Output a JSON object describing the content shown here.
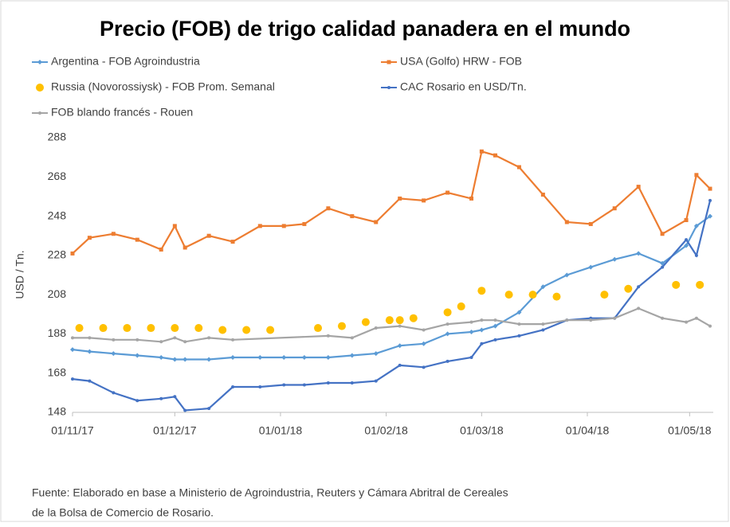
{
  "chart_data": {
    "type": "line",
    "title": "Precio (FOB) de trigo calidad panadera en el mundo",
    "ylabel": "USD / Tn.",
    "source": [
      "Fuente: Elaborado en base a Ministerio de Agroindustria, Reuters y Cámara Abritral de Cereales",
      "de la Bolsa de Comercio de Rosario."
    ],
    "xlim": [
      "01/11/17",
      "07/05/18"
    ],
    "xticks": [
      "01/11/17",
      "01/12/17",
      "01/01/18",
      "01/02/18",
      "01/03/18",
      "01/04/18",
      "01/05/18"
    ],
    "ylim": [
      148,
      288
    ],
    "yticks": [
      148,
      168,
      188,
      208,
      228,
      248,
      268,
      288
    ],
    "grid": false,
    "series": [
      {
        "name": "Argentina - FOB Agroindustria",
        "color": "#5b9bd5",
        "marker": "diamond",
        "x": [
          "01/11/17",
          "06/11/17",
          "13/11/17",
          "20/11/17",
          "27/11/17",
          "01/12/17",
          "04/12/17",
          "11/12/17",
          "18/12/17",
          "26/12/17",
          "02/01/18",
          "08/01/18",
          "15/01/18",
          "22/01/18",
          "29/01/18",
          "05/02/18",
          "12/02/18",
          "19/02/18",
          "26/02/18",
          "01/03/18",
          "05/03/18",
          "12/03/18",
          "19/03/18",
          "26/03/18",
          "02/04/18",
          "09/04/18",
          "16/04/18",
          "23/04/18",
          "30/04/18",
          "03/05/18",
          "07/05/18"
        ],
        "values": [
          180,
          179,
          178,
          177,
          176,
          175,
          175,
          175,
          176,
          176,
          176,
          176,
          176,
          177,
          178,
          182,
          183,
          188,
          189,
          190,
          192,
          199,
          212,
          218,
          222,
          226,
          229,
          224,
          233,
          243,
          248
        ]
      },
      {
        "name": "USA (Golfo) HRW - FOB",
        "color": "#ed7d31",
        "marker": "square",
        "x": [
          "01/11/17",
          "06/11/17",
          "13/11/17",
          "20/11/17",
          "27/11/17",
          "01/12/17",
          "04/12/17",
          "11/12/17",
          "18/12/17",
          "26/12/17",
          "02/01/18",
          "08/01/18",
          "15/01/18",
          "22/01/18",
          "29/01/18",
          "05/02/18",
          "12/02/18",
          "19/02/18",
          "26/02/18",
          "01/03/18",
          "05/03/18",
          "12/03/18",
          "19/03/18",
          "26/03/18",
          "02/04/18",
          "09/04/18",
          "16/04/18",
          "23/04/18",
          "30/04/18",
          "03/05/18",
          "07/05/18"
        ],
        "values": [
          229,
          237,
          239,
          236,
          231,
          243,
          232,
          238,
          235,
          243,
          243,
          244,
          252,
          248,
          245,
          257,
          256,
          260,
          257,
          281,
          279,
          273,
          259,
          245,
          244,
          252,
          263,
          239,
          246,
          269,
          262
        ]
      },
      {
        "name": "Russia (Novorossiysk) - FOB Prom. Semanal",
        "color": "#ffc000",
        "marker": "dot",
        "x": [
          "03/11/17",
          "10/11/17",
          "17/11/17",
          "24/11/17",
          "01/12/17",
          "08/12/17",
          "15/12/17",
          "22/12/17",
          "29/12/17",
          "12/01/18",
          "19/01/18",
          "26/01/18",
          "02/02/18",
          "05/02/18",
          "09/02/18",
          "19/02/18",
          "23/02/18",
          "01/03/18",
          "09/03/18",
          "16/03/18",
          "23/03/18",
          "06/04/18",
          "13/04/18",
          "27/04/18",
          "04/05/18"
        ],
        "values": [
          191,
          191,
          191,
          191,
          191,
          191,
          190,
          190,
          190,
          191,
          192,
          194,
          195,
          195,
          196,
          199,
          202,
          210,
          208,
          208,
          207,
          208,
          211,
          213,
          213
        ]
      },
      {
        "name": "CAC Rosario en USD/Tn.",
        "color": "#4472c4",
        "marker": "circle",
        "x": [
          "01/11/17",
          "06/11/17",
          "13/11/17",
          "20/11/17",
          "27/11/17",
          "01/12/17",
          "04/12/17",
          "11/12/17",
          "18/12/17",
          "26/12/17",
          "02/01/18",
          "08/01/18",
          "15/01/18",
          "22/01/18",
          "29/01/18",
          "05/02/18",
          "12/02/18",
          "19/02/18",
          "26/02/18",
          "01/03/18",
          "05/03/18",
          "12/03/18",
          "19/03/18",
          "26/03/18",
          "02/04/18",
          "09/04/18",
          "16/04/18",
          "23/04/18",
          "30/04/18",
          "03/05/18",
          "07/05/18"
        ],
        "values": [
          165,
          164,
          158,
          154,
          155,
          156,
          149,
          150,
          161,
          161,
          162,
          162,
          163,
          163,
          164,
          172,
          171,
          174,
          176,
          183,
          185,
          187,
          190,
          195,
          196,
          196,
          212,
          222,
          236,
          228,
          256
        ]
      },
      {
        "name": "FOB blando francés - Rouen",
        "color": "#a5a5a5",
        "marker": "circle",
        "x": [
          "01/11/17",
          "06/11/17",
          "13/11/17",
          "20/11/17",
          "27/11/17",
          "01/12/17",
          "04/12/17",
          "11/12/17",
          "18/12/17",
          "15/01/18",
          "22/01/18",
          "29/01/18",
          "05/02/18",
          "12/02/18",
          "19/02/18",
          "26/02/18",
          "01/03/18",
          "05/03/18",
          "12/03/18",
          "19/03/18",
          "26/03/18",
          "02/04/18",
          "09/04/18",
          "16/04/18",
          "23/04/18",
          "30/04/18",
          "03/05/18",
          "07/05/18"
        ],
        "values": [
          186,
          186,
          185,
          185,
          184,
          186,
          184,
          186,
          185,
          187,
          186,
          191,
          192,
          190,
          193,
          194,
          195,
          195,
          193,
          193,
          195,
          195,
          196,
          201,
          196,
          194,
          196,
          192
        ]
      }
    ]
  }
}
